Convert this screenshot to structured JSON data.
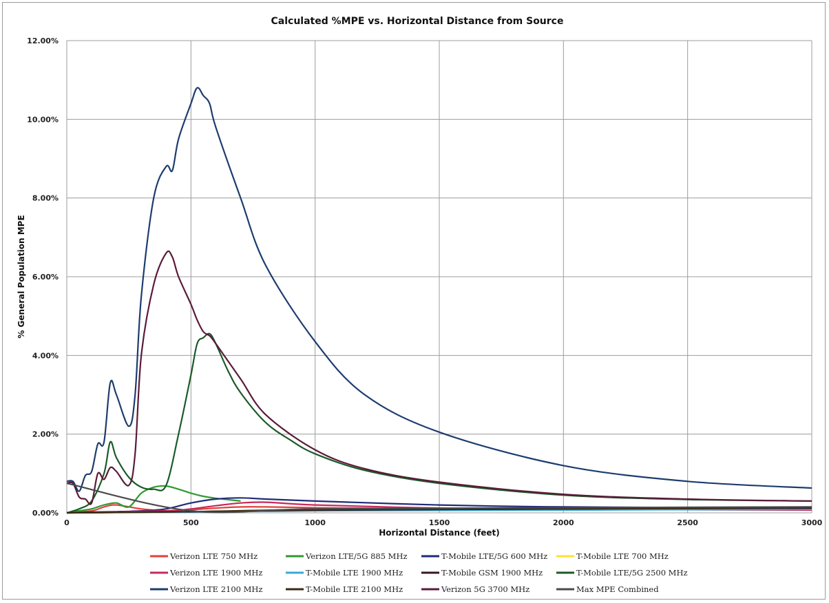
{
  "chart_data": {
    "type": "line",
    "title": "Calculated %MPE vs. Horizontal Distance from Source",
    "xlabel": "Horizontal Distance (feet)",
    "ylabel": "% General Population MPE",
    "xlim": [
      0,
      3000
    ],
    "ylim": [
      0,
      12
    ],
    "x_ticks": [
      0,
      500,
      1000,
      1500,
      2000,
      2500,
      3000
    ],
    "x_tick_labels": [
      "0",
      "500",
      "1000",
      "1500",
      "2000",
      "2500",
      "3000"
    ],
    "y_ticks": [
      0,
      2,
      4,
      6,
      8,
      10,
      12
    ],
    "y_tick_labels": [
      "0.00%",
      "2.00%",
      "4.00%",
      "6.00%",
      "8.00%",
      "10.00%",
      "12.00%"
    ],
    "grid": true,
    "legend_position": "bottom",
    "series": [
      {
        "name": "Verizon LTE 750 MHz",
        "color": "#e0413a",
        "x": [
          0,
          100,
          150,
          200,
          300,
          400,
          500,
          600,
          700,
          800,
          1000,
          1500,
          2000,
          3000
        ],
        "y": [
          0,
          0.05,
          0.15,
          0.2,
          0.1,
          0.05,
          0.08,
          0.12,
          0.15,
          0.15,
          0.13,
          0.1,
          0.09,
          0.08
        ]
      },
      {
        "name": "Verizon LTE/5G 885 MHz",
        "color": "#2e9a2e",
        "x": [
          0,
          50,
          100,
          150,
          200,
          250,
          300,
          350,
          400,
          450,
          500,
          550,
          600,
          700
        ],
        "y": [
          0,
          0.05,
          0.1,
          0.2,
          0.25,
          0.15,
          0.5,
          0.65,
          0.68,
          0.6,
          0.5,
          0.42,
          0.37,
          0.3
        ]
      },
      {
        "name": "T-Mobile LTE/5G 600 MHz",
        "color": "#1f2a78",
        "x": [
          0,
          100,
          200,
          300,
          400,
          500,
          600,
          700,
          800,
          1000,
          1500,
          2000,
          3000
        ],
        "y": [
          0,
          0.02,
          0.03,
          0.05,
          0.1,
          0.25,
          0.35,
          0.38,
          0.35,
          0.3,
          0.2,
          0.15,
          0.12
        ]
      },
      {
        "name": "T-Mobile LTE 700 MHz",
        "color": "#ffe030",
        "x": [
          0,
          500,
          1000,
          2000,
          3000
        ],
        "y": [
          0,
          0.03,
          0.06,
          0.08,
          0.1
        ]
      },
      {
        "name": "Verizon LTE 1900 MHz",
        "color": "#c8285a",
        "x": [
          0,
          400,
          500,
          600,
          700,
          800,
          1000,
          1500,
          2000,
          3000
        ],
        "y": [
          0,
          0.05,
          0.1,
          0.18,
          0.25,
          0.27,
          0.2,
          0.12,
          0.09,
          0.07
        ]
      },
      {
        "name": "T-Mobile LTE 1900 MHz",
        "color": "#38a8d8",
        "x": [
          0,
          500,
          1000,
          2000,
          3000
        ],
        "y": [
          0,
          0.02,
          0.05,
          0.07,
          0.09
        ]
      },
      {
        "name": "T-Mobile GSM 1900 MHz",
        "color": "#3a1420",
        "x": [
          0,
          500,
          1000,
          2000,
          3000
        ],
        "y": [
          0,
          0.03,
          0.07,
          0.1,
          0.12
        ]
      },
      {
        "name": "T-Mobile LTE/5G 2500 MHz",
        "color": "#1a5a28",
        "x": [
          0,
          50,
          100,
          150,
          175,
          200,
          250,
          300,
          350,
          400,
          450,
          500,
          525,
          550,
          575,
          600,
          650,
          700,
          800,
          900,
          1000,
          1200,
          1500,
          2000,
          2500,
          3000
        ],
        "y": [
          0,
          0.1,
          0.3,
          1.0,
          1.8,
          1.4,
          0.9,
          0.65,
          0.6,
          0.7,
          2.0,
          3.5,
          4.3,
          4.45,
          4.55,
          4.3,
          3.6,
          3.05,
          2.3,
          1.85,
          1.5,
          1.08,
          0.75,
          0.45,
          0.34,
          0.3
        ]
      },
      {
        "name": "Verizon LTE 2100 MHz",
        "color": "#1c3c6e",
        "x": [
          0,
          25,
          50,
          75,
          100,
          125,
          150,
          175,
          200,
          250,
          275,
          300,
          350,
          400,
          425,
          450,
          500,
          525,
          550,
          575,
          600,
          700,
          800,
          1000,
          1200,
          1500,
          2000,
          2500,
          3000
        ],
        "y": [
          0.8,
          0.8,
          0.55,
          0.95,
          1.05,
          1.75,
          1.8,
          3.3,
          3.0,
          2.2,
          3.0,
          5.5,
          8.0,
          8.8,
          8.7,
          9.5,
          10.4,
          10.8,
          10.6,
          10.4,
          9.8,
          8.0,
          6.3,
          4.35,
          3.0,
          2.05,
          1.2,
          0.8,
          0.63
        ]
      },
      {
        "name": "T-Mobile LTE 2100 MHz",
        "color": "#3a2a10",
        "x": [
          0,
          500,
          1000,
          2000,
          3000
        ],
        "y": [
          0,
          0.03,
          0.08,
          0.1,
          0.14
        ]
      },
      {
        "name": "Verizon 5G 3700 MHz",
        "color": "#5a1a38",
        "x": [
          0,
          25,
          50,
          75,
          100,
          125,
          150,
          175,
          200,
          250,
          275,
          300,
          350,
          400,
          425,
          450,
          500,
          525,
          550,
          575,
          600,
          700,
          800,
          1000,
          1200,
          1500,
          2000,
          2500,
          3000
        ],
        "y": [
          0.75,
          0.75,
          0.4,
          0.35,
          0.25,
          1.0,
          0.85,
          1.15,
          1.05,
          0.7,
          1.5,
          4.0,
          5.8,
          6.6,
          6.5,
          6.0,
          5.3,
          4.9,
          4.6,
          4.5,
          4.3,
          3.4,
          2.5,
          1.6,
          1.12,
          0.78,
          0.47,
          0.35,
          0.3
        ]
      },
      {
        "name": "Max MPE Combined",
        "color": "#4a4a4a",
        "x": [
          0,
          500,
          1000,
          2000,
          3000
        ],
        "y": [
          0.75,
          0.05,
          0.1,
          0.13,
          0.15
        ]
      }
    ]
  }
}
